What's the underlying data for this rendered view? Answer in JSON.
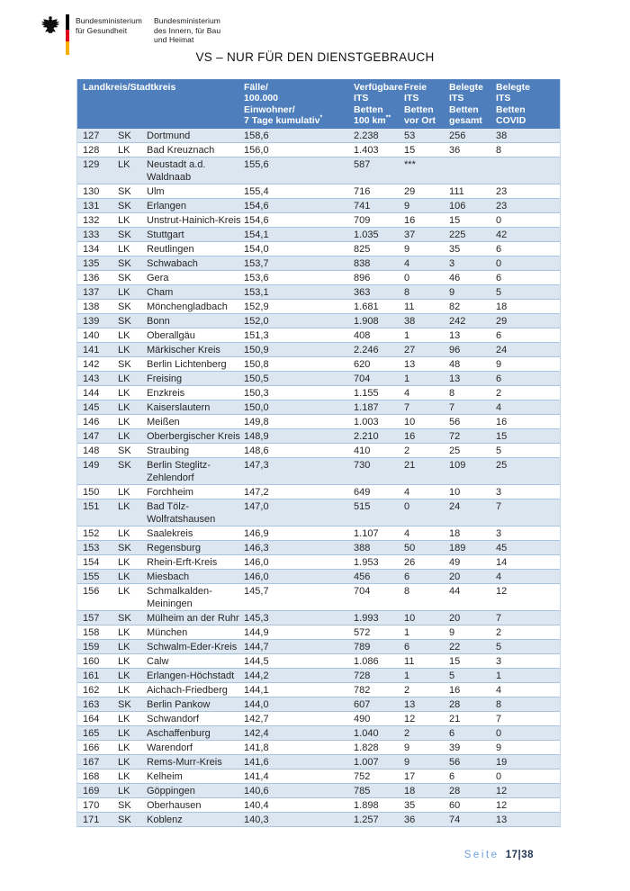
{
  "brand": {
    "ministry_health": "Bundesministerium\nfür Gesundheit",
    "ministry_interior": "Bundesministerium\ndes Innern, für Bau\nund Heimat"
  },
  "title": "VS – NUR FÜR DEN DIENSTGEBRAUCH",
  "colors": {
    "header_bg": "#4e7fbc",
    "row_shade": "#dce6f1",
    "row_border": "#a9c4e2",
    "flag_black": "#000000",
    "flag_red": "#e2001a",
    "flag_gold": "#f9b000",
    "footer_label": "#6f9fd8",
    "footer_number": "#1f3455"
  },
  "table": {
    "header": {
      "landkreis": "Landkreis/Stadtkreis",
      "faelle": {
        "text": "Fälle/\n100.000\nEinwohner/\n7 Tage kumulativ",
        "sup": "*"
      },
      "verfuegbare": {
        "text": "Verfügbare\nITS\nBetten\n100 km",
        "sup": "**"
      },
      "freie": "Freie\nITS\nBetten\nvor Ort",
      "gesamt": "Belegte\nITS\nBetten\ngesamt",
      "covid": "Belegte\nITS\nBetten\nCOVID"
    },
    "rows": [
      {
        "rank": "127",
        "type": "SK",
        "name": "Dortmund",
        "faelle": "158,6",
        "verfuegbare": "2.238",
        "freie": "53",
        "gesamt": "256",
        "covid": "38"
      },
      {
        "rank": "128",
        "type": "LK",
        "name": "Bad Kreuznach",
        "faelle": "156,0",
        "verfuegbare": "1.403",
        "freie": "15",
        "gesamt": "36",
        "covid": "8"
      },
      {
        "rank": "129",
        "type": "LK",
        "name": "Neustadt a.d.\nWaldnaab",
        "faelle": "155,6",
        "verfuegbare": "587",
        "freie": "***",
        "gesamt": "",
        "covid": ""
      },
      {
        "rank": "130",
        "type": "SK",
        "name": "Ulm",
        "faelle": "155,4",
        "verfuegbare": "716",
        "freie": "29",
        "gesamt": "111",
        "covid": "23"
      },
      {
        "rank": "131",
        "type": "SK",
        "name": "Erlangen",
        "faelle": "154,6",
        "verfuegbare": "741",
        "freie": "9",
        "gesamt": "106",
        "covid": "23"
      },
      {
        "rank": "132",
        "type": "LK",
        "name": "Unstrut-Hainich-Kreis",
        "faelle": "154,6",
        "verfuegbare": "709",
        "freie": "16",
        "gesamt": "15",
        "covid": "0"
      },
      {
        "rank": "133",
        "type": "SK",
        "name": "Stuttgart",
        "faelle": "154,1",
        "verfuegbare": "1.035",
        "freie": "37",
        "gesamt": "225",
        "covid": "42"
      },
      {
        "rank": "134",
        "type": "LK",
        "name": "Reutlingen",
        "faelle": "154,0",
        "verfuegbare": "825",
        "freie": "9",
        "gesamt": "35",
        "covid": "6"
      },
      {
        "rank": "135",
        "type": "SK",
        "name": "Schwabach",
        "faelle": "153,7",
        "verfuegbare": "838",
        "freie": "4",
        "gesamt": "3",
        "covid": "0"
      },
      {
        "rank": "136",
        "type": "SK",
        "name": "Gera",
        "faelle": "153,6",
        "verfuegbare": "896",
        "freie": "0",
        "gesamt": "46",
        "covid": "6"
      },
      {
        "rank": "137",
        "type": "LK",
        "name": "Cham",
        "faelle": "153,1",
        "verfuegbare": "363",
        "freie": "8",
        "gesamt": "9",
        "covid": "5"
      },
      {
        "rank": "138",
        "type": "SK",
        "name": "Mönchengladbach",
        "faelle": "152,9",
        "verfuegbare": "1.681",
        "freie": "11",
        "gesamt": "82",
        "covid": "18"
      },
      {
        "rank": "139",
        "type": "SK",
        "name": "Bonn",
        "faelle": "152,0",
        "verfuegbare": "1.908",
        "freie": "38",
        "gesamt": "242",
        "covid": "29"
      },
      {
        "rank": "140",
        "type": "LK",
        "name": "Oberallgäu",
        "faelle": "151,3",
        "verfuegbare": "408",
        "freie": "1",
        "gesamt": "13",
        "covid": "6"
      },
      {
        "rank": "141",
        "type": "LK",
        "name": "Märkischer Kreis",
        "faelle": "150,9",
        "verfuegbare": "2.246",
        "freie": "27",
        "gesamt": "96",
        "covid": "24"
      },
      {
        "rank": "142",
        "type": "SK",
        "name": "Berlin Lichtenberg",
        "faelle": "150,8",
        "verfuegbare": "620",
        "freie": "13",
        "gesamt": "48",
        "covid": "9"
      },
      {
        "rank": "143",
        "type": "LK",
        "name": "Freising",
        "faelle": "150,5",
        "verfuegbare": "704",
        "freie": "1",
        "gesamt": "13",
        "covid": "6"
      },
      {
        "rank": "144",
        "type": "LK",
        "name": "Enzkreis",
        "faelle": "150,3",
        "verfuegbare": "1.155",
        "freie": "4",
        "gesamt": "8",
        "covid": "2"
      },
      {
        "rank": "145",
        "type": "LK",
        "name": "Kaiserslautern",
        "faelle": "150,0",
        "verfuegbare": "1.187",
        "freie": "7",
        "gesamt": "7",
        "covid": "4"
      },
      {
        "rank": "146",
        "type": "LK",
        "name": "Meißen",
        "faelle": "149,8",
        "verfuegbare": "1.003",
        "freie": "10",
        "gesamt": "56",
        "covid": "16"
      },
      {
        "rank": "147",
        "type": "LK",
        "name": "Oberbergischer Kreis",
        "faelle": "148,9",
        "verfuegbare": "2.210",
        "freie": "16",
        "gesamt": "72",
        "covid": "15"
      },
      {
        "rank": "148",
        "type": "SK",
        "name": "Straubing",
        "faelle": "148,6",
        "verfuegbare": "410",
        "freie": "2",
        "gesamt": "25",
        "covid": "5"
      },
      {
        "rank": "149",
        "type": "SK",
        "name": "Berlin Steglitz-\nZehlendorf",
        "faelle": "147,3",
        "verfuegbare": "730",
        "freie": "21",
        "gesamt": "109",
        "covid": "25"
      },
      {
        "rank": "150",
        "type": "LK",
        "name": "Forchheim",
        "faelle": "147,2",
        "verfuegbare": "649",
        "freie": "4",
        "gesamt": "10",
        "covid": "3"
      },
      {
        "rank": "151",
        "type": "LK",
        "name": "Bad Tölz-\nWolfratshausen",
        "faelle": "147,0",
        "verfuegbare": "515",
        "freie": "0",
        "gesamt": "24",
        "covid": "7"
      },
      {
        "rank": "152",
        "type": "LK",
        "name": "Saalekreis",
        "faelle": "146,9",
        "verfuegbare": "1.107",
        "freie": "4",
        "gesamt": "18",
        "covid": "3"
      },
      {
        "rank": "153",
        "type": "SK",
        "name": "Regensburg",
        "faelle": "146,3",
        "verfuegbare": "388",
        "freie": "50",
        "gesamt": "189",
        "covid": "45"
      },
      {
        "rank": "154",
        "type": "LK",
        "name": "Rhein-Erft-Kreis",
        "faelle": "146,0",
        "verfuegbare": "1.953",
        "freie": "26",
        "gesamt": "49",
        "covid": "14"
      },
      {
        "rank": "155",
        "type": "LK",
        "name": "Miesbach",
        "faelle": "146,0",
        "verfuegbare": "456",
        "freie": "6",
        "gesamt": "20",
        "covid": "4"
      },
      {
        "rank": "156",
        "type": "LK",
        "name": "Schmalkalden-\nMeiningen",
        "faelle": "145,7",
        "verfuegbare": "704",
        "freie": "8",
        "gesamt": "44",
        "covid": "12"
      },
      {
        "rank": "157",
        "type": "SK",
        "name": "Mülheim an der Ruhr",
        "faelle": "145,3",
        "verfuegbare": "1.993",
        "freie": "10",
        "gesamt": "20",
        "covid": "7"
      },
      {
        "rank": "158",
        "type": "LK",
        "name": "München",
        "faelle": "144,9",
        "verfuegbare": "572",
        "freie": "1",
        "gesamt": "9",
        "covid": "2"
      },
      {
        "rank": "159",
        "type": "LK",
        "name": "Schwalm-Eder-Kreis",
        "faelle": "144,7",
        "verfuegbare": "789",
        "freie": "6",
        "gesamt": "22",
        "covid": "5"
      },
      {
        "rank": "160",
        "type": "LK",
        "name": "Calw",
        "faelle": "144,5",
        "verfuegbare": "1.086",
        "freie": "11",
        "gesamt": "15",
        "covid": "3"
      },
      {
        "rank": "161",
        "type": "LK",
        "name": "Erlangen-Höchstadt",
        "faelle": "144,2",
        "verfuegbare": "728",
        "freie": "1",
        "gesamt": "5",
        "covid": "1"
      },
      {
        "rank": "162",
        "type": "LK",
        "name": "Aichach-Friedberg",
        "faelle": "144,1",
        "verfuegbare": "782",
        "freie": "2",
        "gesamt": "16",
        "covid": "4"
      },
      {
        "rank": "163",
        "type": "SK",
        "name": "Berlin Pankow",
        "faelle": "144,0",
        "verfuegbare": "607",
        "freie": "13",
        "gesamt": "28",
        "covid": "8"
      },
      {
        "rank": "164",
        "type": "LK",
        "name": "Schwandorf",
        "faelle": "142,7",
        "verfuegbare": "490",
        "freie": "12",
        "gesamt": "21",
        "covid": "7"
      },
      {
        "rank": "165",
        "type": "LK",
        "name": "Aschaffenburg",
        "faelle": "142,4",
        "verfuegbare": "1.040",
        "freie": "2",
        "gesamt": "6",
        "covid": "0"
      },
      {
        "rank": "166",
        "type": "LK",
        "name": "Warendorf",
        "faelle": "141,8",
        "verfuegbare": "1.828",
        "freie": "9",
        "gesamt": "39",
        "covid": "9"
      },
      {
        "rank": "167",
        "type": "LK",
        "name": "Rems-Murr-Kreis",
        "faelle": "141,6",
        "verfuegbare": "1.007",
        "freie": "9",
        "gesamt": "56",
        "covid": "19"
      },
      {
        "rank": "168",
        "type": "LK",
        "name": "Kelheim",
        "faelle": "141,4",
        "verfuegbare": "752",
        "freie": "17",
        "gesamt": "6",
        "covid": "0"
      },
      {
        "rank": "169",
        "type": "LK",
        "name": "Göppingen",
        "faelle": "140,6",
        "verfuegbare": "785",
        "freie": "18",
        "gesamt": "28",
        "covid": "12"
      },
      {
        "rank": "170",
        "type": "SK",
        "name": "Oberhausen",
        "faelle": "140,4",
        "verfuegbare": "1.898",
        "freie": "35",
        "gesamt": "60",
        "covid": "12"
      },
      {
        "rank": "171",
        "type": "SK",
        "name": "Koblenz",
        "faelle": "140,3",
        "verfuegbare": "1.257",
        "freie": "36",
        "gesamt": "74",
        "covid": "13"
      }
    ]
  },
  "footer": {
    "page_label": "Seite",
    "page_number": "17|38"
  }
}
